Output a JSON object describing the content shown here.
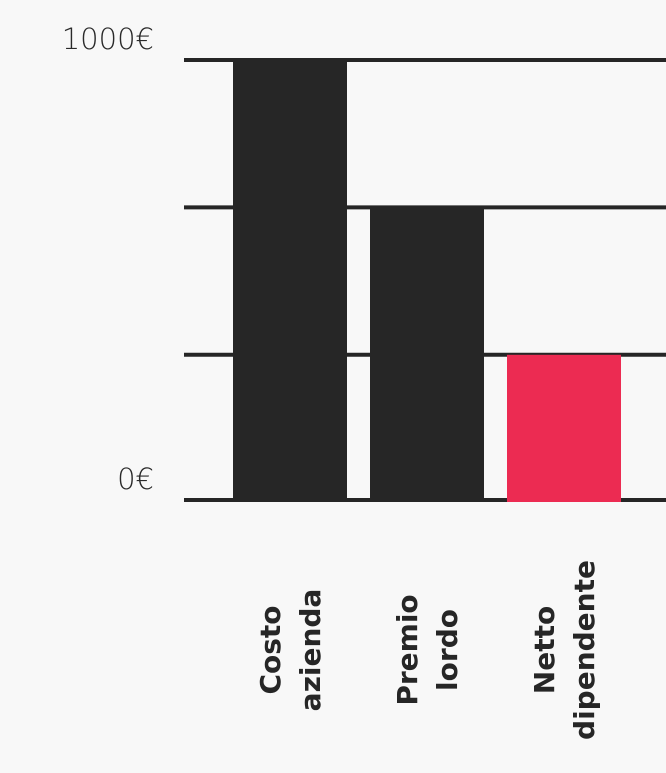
{
  "chart_data": {
    "type": "bar",
    "categories": [
      [
        "Costo",
        "azienda"
      ],
      [
        "Premio",
        "lordo"
      ],
      [
        "Netto",
        "dipendente"
      ]
    ],
    "values": [
      1000,
      665,
      330
    ],
    "ylim": [
      0,
      1000
    ],
    "gridlines": [
      0,
      330,
      665,
      1000
    ],
    "y_tick_labels": [
      {
        "value": 1000,
        "label": "1000€"
      },
      {
        "value": 0,
        "label": "0€"
      }
    ],
    "colors": [
      "#262626",
      "#262626",
      "#ec2b52"
    ],
    "grid_color": "#262626",
    "grid": true
  }
}
